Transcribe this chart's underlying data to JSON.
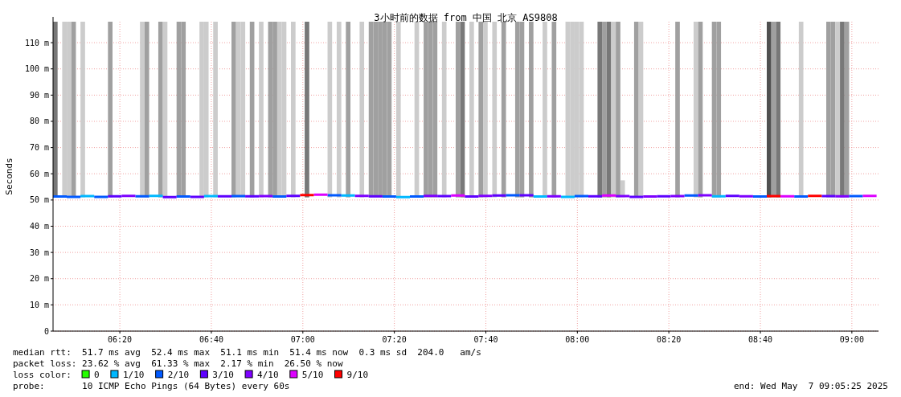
{
  "chart_data": {
    "type": "step",
    "title": "3小时前的数据 from 中国 北京 AS9808",
    "ylabel": "Seconds",
    "legend_title": "loss color:",
    "legend": "bottom",
    "grid": true,
    "xlim": [
      6.09,
      9.097
    ],
    "xticks": [
      {
        "value": 6.3333,
        "label": "06:20"
      },
      {
        "value": 6.6667,
        "label": "06:40"
      },
      {
        "value": 7,
        "label": "07:00"
      },
      {
        "value": 7.3333,
        "label": "07:20"
      },
      {
        "value": 7.6667,
        "label": "07:40"
      },
      {
        "value": 8,
        "label": "08:00"
      },
      {
        "value": 8.3333,
        "label": "08:20"
      },
      {
        "value": 8.6667,
        "label": "08:40"
      },
      {
        "value": 9,
        "label": "09:00"
      }
    ],
    "ylim": [
      0,
      118
    ],
    "yticks": [
      0,
      {
        "value": 10,
        "label": "10 m"
      },
      {
        "value": 20,
        "label": "20 m"
      },
      {
        "value": 30,
        "label": "30 m"
      },
      {
        "value": 40,
        "label": "40 m"
      },
      {
        "value": 50,
        "label": "50 m"
      },
      {
        "value": 60,
        "label": "60 m"
      },
      {
        "value": 70,
        "label": "70 m"
      },
      {
        "value": 80,
        "label": "80 m"
      },
      {
        "value": 90,
        "label": "90 m"
      },
      {
        "value": 100,
        "label": "100 m"
      },
      {
        "value": 110,
        "label": "110 m"
      }
    ],
    "annotations": [
      "median rtt:  51.7 ms avg  52.4 ms max  51.1 ms min  51.4 ms now  0.3 ms sd  204.0   am/s",
      "packet loss: 23.62 % avg  61.33 % max  2.17 % min  26.50 % now",
      "probe:       10 ICMP Echo Pings (64 Bytes) every 60s",
      "end: Wed May  7 09:05:25 2025"
    ],
    "series": [
      {
        "type": "bar",
        "x": [
          6.0983,
          6.1317,
          6.1483,
          6.165,
          6.1983,
          6.2983,
          6.415,
          6.4317,
          6.4817,
          6.4983,
          6.5483,
          6.565,
          6.6317,
          6.6483,
          6.6817,
          6.7483,
          6.765,
          6.7817,
          6.815,
          6.8483,
          6.8817,
          6.8983,
          6.915,
          6.9317,
          6.965,
          7.015,
          7.0983,
          7.1317,
          7.165,
          7.215,
          7.2483,
          7.265,
          7.2817,
          7.2983,
          7.315,
          7.3483,
          7.415,
          7.4483,
          7.465,
          7.4817,
          7.515,
          7.565,
          7.5817,
          7.615,
          7.6483,
          7.665,
          7.6983,
          7.7317,
          7.7817,
          7.7983,
          7.8317,
          7.8817,
          7.915,
          7.965,
          7.9817,
          7.9983,
          8.015,
          8.0817,
          8.0983,
          8.115,
          8.1317,
          8.1483,
          8.165,
          8.215,
          8.2317,
          8.365,
          8.4317,
          8.4483,
          8.4983,
          8.515,
          8.6983,
          8.715,
          8.7317,
          8.815,
          8.915,
          8.9317,
          8.9483,
          8.965,
          8.9817
        ],
        "base": [
          51,
          51,
          51,
          51,
          51,
          51,
          51,
          51,
          51,
          51,
          51,
          51,
          51,
          51,
          51,
          51,
          51,
          51,
          51,
          51,
          51,
          51,
          51,
          51,
          51,
          51,
          51,
          51,
          51,
          51,
          51,
          51,
          51,
          51,
          51,
          51,
          51,
          51,
          51,
          51,
          51,
          51,
          51,
          51,
          51,
          51,
          51,
          51,
          51,
          51,
          51,
          51,
          51,
          51,
          51,
          51,
          51,
          51,
          51,
          51,
          51,
          51,
          51,
          51,
          51,
          51,
          51,
          51,
          51,
          51,
          51,
          51,
          51,
          51,
          51,
          51,
          51,
          51,
          51
        ],
        "values": [
          67,
          67,
          67,
          67,
          67,
          67,
          67,
          67,
          67,
          67,
          67,
          67,
          67,
          67,
          67,
          67,
          67,
          67,
          67,
          67,
          67,
          67,
          67,
          67,
          67,
          67,
          67,
          67,
          67,
          67,
          67,
          67,
          67,
          67,
          67,
          67,
          67,
          67,
          67,
          67,
          67,
          67,
          67,
          67,
          67,
          67,
          67,
          67,
          67,
          67,
          67,
          67,
          67,
          67,
          67,
          67,
          67,
          67,
          67,
          67,
          67,
          67,
          6.5,
          67,
          67,
          67,
          67,
          67,
          67,
          67,
          67,
          67,
          67,
          67,
          67,
          67,
          67,
          67,
          67
        ],
        "colors": [
          "#787878",
          "#cccccc",
          "#cccccc",
          "#a0a0a0",
          "#cccccc",
          "#a0a0a0",
          "#cccccc",
          "#a0a0a0",
          "#a0a0a0",
          "#cccccc",
          "#a0a0a0",
          "#a0a0a0",
          "#cccccc",
          "#cccccc",
          "#cccccc",
          "#a0a0a0",
          "#cccccc",
          "#cccccc",
          "#a0a0a0",
          "#cccccc",
          "#a0a0a0",
          "#a0a0a0",
          "#cccccc",
          "#cccccc",
          "#cccccc",
          "#787878",
          "#cccccc",
          "#cccccc",
          "#a0a0a0",
          "#cccccc",
          "#a0a0a0",
          "#a0a0a0",
          "#a0a0a0",
          "#a0a0a0",
          "#a0a0a0",
          "#cccccc",
          "#cccccc",
          "#a0a0a0",
          "#a0a0a0",
          "#a0a0a0",
          "#cccccc",
          "#a0a0a0",
          "#787878",
          "#cccccc",
          "#a0a0a0",
          "#cccccc",
          "#cccccc",
          "#a0a0a0",
          "#a0a0a0",
          "#a0a0a0",
          "#a0a0a0",
          "#cccccc",
          "#a0a0a0",
          "#cccccc",
          "#cccccc",
          "#cccccc",
          "#cccccc",
          "#787878",
          "#a0a0a0",
          "#787878",
          "#cccccc",
          "#a0a0a0",
          "#cccccc",
          "#a0a0a0",
          "#cccccc",
          "#a0a0a0",
          "#cccccc",
          "#a0a0a0",
          "#a0a0a0",
          "#a0a0a0",
          "#505050",
          "#a0a0a0",
          "#787878",
          "#cccccc",
          "#a0a0a0",
          "#a0a0a0",
          "#cccccc",
          "#787878",
          "#a0a0a0"
        ]
      },
      {
        "name": "0",
        "color": "#26ff00"
      },
      {
        "name": "1/10",
        "color": "#00b8ff",
        "x": [
          6.19,
          6.24,
          6.44,
          6.49,
          6.64,
          6.69,
          7.14,
          7.19,
          7.34,
          7.39,
          7.84,
          7.89,
          7.94,
          7.99,
          8.49,
          8.54
        ],
        "values": [
          51.5,
          51.5,
          51.6,
          51.6,
          51.5,
          51.5,
          51.7,
          51.7,
          51.1,
          51.1,
          51.3,
          51.3,
          51.2,
          51.2,
          51.4,
          51.4
        ]
      },
      {
        "name": "2/10",
        "color": "#0059ff",
        "x": [
          6.09,
          6.14,
          6.14,
          6.19,
          6.24,
          6.29,
          6.39,
          6.44,
          6.54,
          6.59,
          6.74,
          6.79,
          6.89,
          6.94,
          7.09,
          7.14,
          7.29,
          7.34,
          7.39,
          7.44,
          7.74,
          7.79,
          7.99,
          8.04,
          8.39,
          8.44,
          8.64,
          8.69,
          8.79,
          8.84,
          8.99,
          9.04
        ],
        "values": [
          51.3,
          51.3,
          51.2,
          51.2,
          51.2,
          51.2,
          51.4,
          51.4,
          51.3,
          51.3,
          51.5,
          51.5,
          51.3,
          51.3,
          51.8,
          51.8,
          51.3,
          51.3,
          51.3,
          51.3,
          51.8,
          51.8,
          51.5,
          51.5,
          51.7,
          51.7,
          51.3,
          51.3,
          51.3,
          51.3,
          51.5,
          51.5
        ]
      },
      {
        "name": "3/10",
        "color": "#5e00ff",
        "x": [
          6.29,
          6.34,
          6.49,
          6.54,
          6.59,
          6.64,
          6.69,
          6.74,
          6.79,
          6.84,
          6.94,
          6.99,
          7.24,
          7.29,
          7.49,
          7.54,
          7.59,
          7.64,
          7.69,
          7.74,
          7.79,
          7.84,
          8.04,
          8.09,
          8.19,
          8.24,
          8.29,
          8.34,
          8.54,
          8.59,
          8.89,
          8.94
        ],
        "values": [
          51.4,
          51.4,
          51.1,
          51.1,
          51.2,
          51.2,
          51.4,
          51.4,
          51.4,
          51.4,
          51.6,
          51.6,
          51.4,
          51.4,
          51.5,
          51.5,
          51.3,
          51.3,
          51.7,
          51.7,
          51.8,
          51.8,
          51.4,
          51.4,
          51.2,
          51.2,
          51.4,
          51.4,
          51.6,
          51.6,
          51.5,
          51.5
        ]
      },
      {
        "name": "4/10",
        "color": "#7e00ff",
        "x": [
          6.34,
          6.39,
          6.84,
          6.89,
          7.19,
          7.24,
          7.44,
          7.49,
          7.64,
          7.69,
          7.89,
          7.94,
          8.14,
          8.19,
          8.24,
          8.29,
          8.34,
          8.39,
          8.44,
          8.49,
          8.59,
          8.64,
          8.94,
          8.99
        ],
        "values": [
          51.6,
          51.6,
          51.5,
          51.5,
          51.6,
          51.6,
          51.6,
          51.6,
          51.6,
          51.6,
          51.4,
          51.4,
          51.5,
          51.5,
          51.3,
          51.3,
          51.5,
          51.5,
          51.8,
          51.8,
          51.4,
          51.4,
          51.4,
          51.4
        ]
      },
      {
        "name": "5/10",
        "color": "#dd00ff",
        "x": [
          7.04,
          7.09,
          7.54,
          7.59,
          8.09,
          8.14,
          8.74,
          8.79,
          9.04,
          9.09
        ],
        "values": [
          52,
          52,
          51.7,
          51.7,
          51.7,
          51.7,
          51.4,
          51.4,
          51.6,
          51.6
        ]
      },
      {
        "name": "9/10",
        "color": "#ff0000",
        "x": [
          6.99,
          7.04,
          8.69,
          8.74,
          8.84,
          8.89
        ],
        "values": [
          51.9,
          51.9,
          51.5,
          51.5,
          51.6,
          51.6
        ]
      }
    ]
  }
}
